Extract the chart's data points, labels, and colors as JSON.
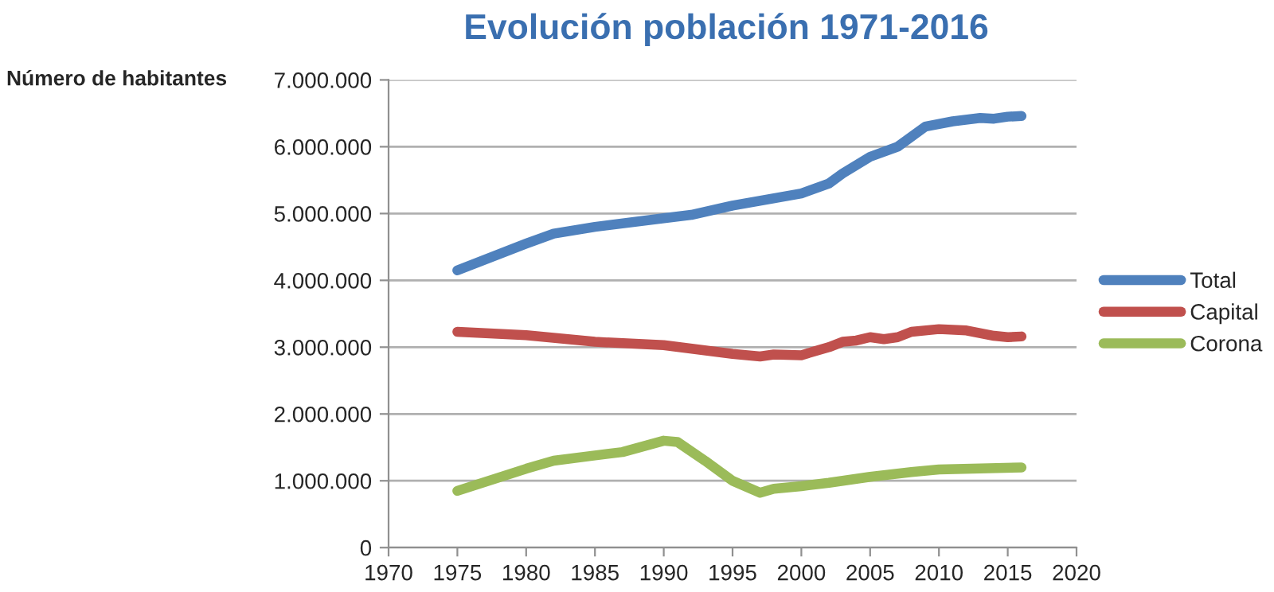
{
  "chart_data": {
    "type": "line",
    "title": "Evolución población 1971-2016",
    "ylabel": "Número de habitantes",
    "xlim": [
      1970,
      2020
    ],
    "xticks": [
      1970,
      1975,
      1980,
      1985,
      1990,
      1995,
      2000,
      2005,
      2010,
      2015,
      2020
    ],
    "ylim": [
      0,
      7000000
    ],
    "yticks": [
      {
        "value": 0,
        "label": "0"
      },
      {
        "value": 1000000,
        "label": "1.000.000"
      },
      {
        "value": 2000000,
        "label": "2.000.000"
      },
      {
        "value": 3000000,
        "label": "3.000.000"
      },
      {
        "value": 4000000,
        "label": "4.000.000"
      },
      {
        "value": 5000000,
        "label": "5.000.000"
      },
      {
        "value": 6000000,
        "label": "6.000.000"
      },
      {
        "value": 7000000,
        "label": "7.000.000"
      }
    ],
    "grid": "y",
    "legend": "right",
    "marker": "none",
    "line_style": "solid",
    "series": [
      {
        "name": "Total",
        "color": "#4f81bd",
        "x": [
          1975,
          1980,
          1982,
          1985,
          1990,
          1992,
          1995,
          2000,
          2002,
          2003,
          2005,
          2007,
          2009,
          2011,
          2013,
          2014,
          2015,
          2016
        ],
        "values": [
          4150000,
          4550000,
          4700000,
          4800000,
          4930000,
          4980000,
          5120000,
          5300000,
          5450000,
          5600000,
          5850000,
          6000000,
          6300000,
          6380000,
          6430000,
          6420000,
          6450000,
          6460000
        ]
      },
      {
        "name": "Capital",
        "color": "#c0504d",
        "x": [
          1975,
          1980,
          1985,
          1990,
          1995,
          1997,
          1998,
          2000,
          2002,
          2003,
          2004,
          2005,
          2006,
          2007,
          2008,
          2010,
          2012,
          2014,
          2015,
          2016
        ],
        "values": [
          3230000,
          3180000,
          3080000,
          3030000,
          2900000,
          2860000,
          2890000,
          2880000,
          3000000,
          3080000,
          3100000,
          3150000,
          3120000,
          3150000,
          3230000,
          3270000,
          3250000,
          3170000,
          3150000,
          3160000
        ]
      },
      {
        "name": "Corona",
        "color": "#9bbb59",
        "x": [
          1975,
          1980,
          1982,
          1985,
          1987,
          1990,
          1991,
          1993,
          1995,
          1997,
          1998,
          2000,
          2002,
          2005,
          2008,
          2010,
          2016
        ],
        "values": [
          850000,
          1180000,
          1300000,
          1380000,
          1430000,
          1600000,
          1580000,
          1300000,
          1000000,
          820000,
          880000,
          920000,
          970000,
          1060000,
          1130000,
          1170000,
          1200000
        ]
      }
    ]
  }
}
